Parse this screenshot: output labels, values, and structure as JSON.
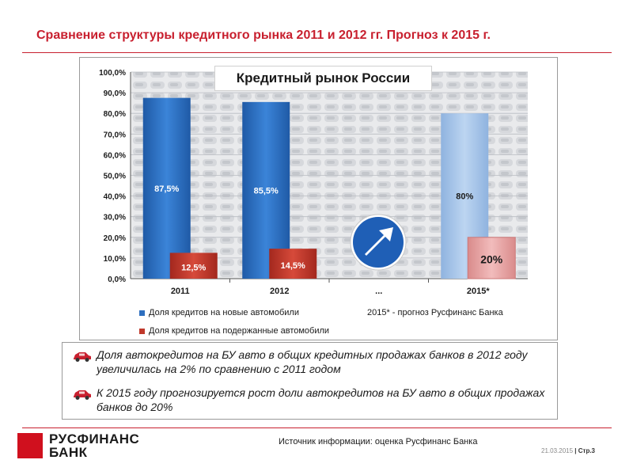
{
  "header": {
    "title": "Сравнение структуры кредитного рынка 2011 и 2012 гг. Прогноз к 2015 г."
  },
  "colors": {
    "accent": "#c8202f",
    "new_cars": "#2e6fbf",
    "used_cars": "#c0392b",
    "forecast_new": "#a9c6e8",
    "forecast_used": "#e8a9a9"
  },
  "chart_data": {
    "type": "bar",
    "title": "Кредитный рынок России",
    "categories": [
      "2011",
      "2012",
      "...",
      "2015*"
    ],
    "series": [
      {
        "name": "Доля кредитов на новые автомобили",
        "values": [
          87.5,
          85.5,
          null,
          80
        ],
        "labels": [
          "87,5%",
          "85,5%",
          "",
          "80%"
        ]
      },
      {
        "name": "Доля кредитов на подержанные автомобили",
        "values": [
          12.5,
          14.5,
          null,
          20
        ],
        "labels": [
          "12,5%",
          "14,5%",
          "",
          "20%"
        ]
      }
    ],
    "ylim": [
      0,
      100
    ],
    "yticks": [
      "0,0%",
      "10,0%",
      "20,0%",
      "30,0%",
      "40,0%",
      "50,0%",
      "60,0%",
      "70,0%",
      "80,0%",
      "90,0%",
      "100,0%"
    ],
    "forecast_note": "2015* - прогноз Русфинанс Банка",
    "legend_placement": "bottom"
  },
  "notes": [
    "Доля автокредитов на БУ авто в общих кредитных продажах банков в 2012 году увеличилась на 2% по сравнению с 2011 годом",
    "К 2015 году прогнозируется рост доли автокредитов на БУ авто в общих продажах банков до 20%"
  ],
  "footer": {
    "logo_line1": "РУСФИНАНС",
    "logo_line2": "БАНК",
    "source": "Источник информации: оценка Русфинанс Банка",
    "date": "21.03.2015",
    "page": "| Стр.3"
  },
  "icons": {
    "arrow_sign": "arrow-sign-icon",
    "note_marker": "car-icon"
  }
}
